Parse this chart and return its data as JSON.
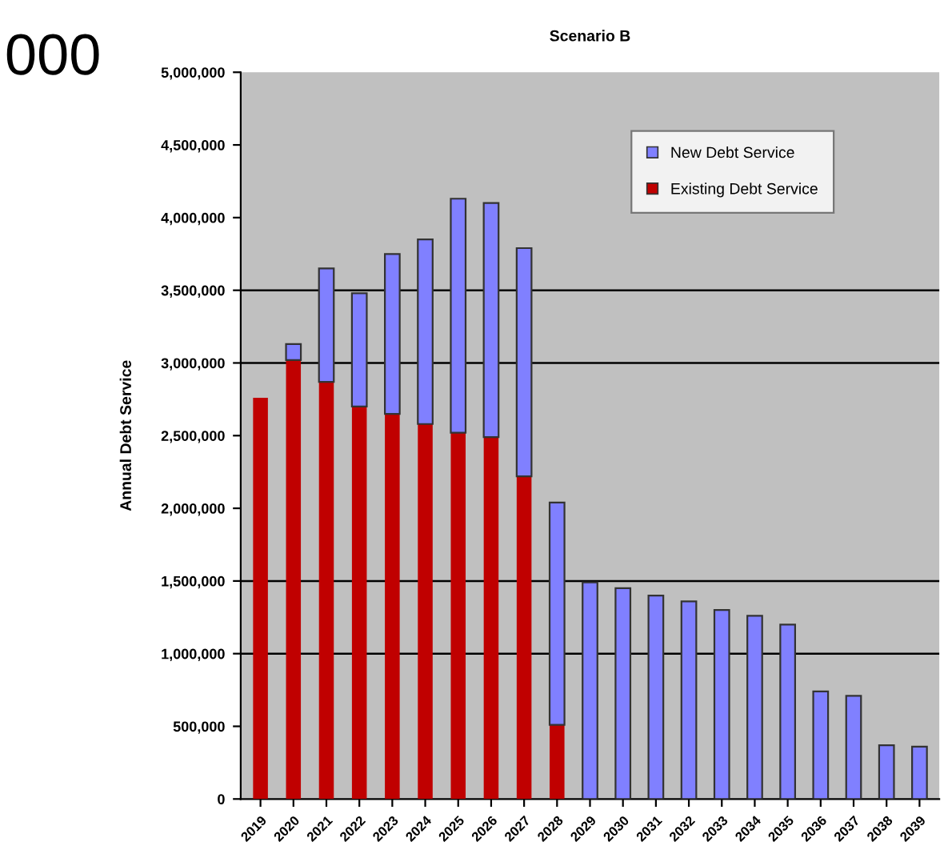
{
  "chart_data": {
    "type": "bar",
    "title": "Scenario B",
    "ylabel": "Annual Debt Service",
    "annotations": [
      "000"
    ],
    "categories": [
      "2019",
      "2020",
      "2021",
      "2022",
      "2023",
      "2024",
      "2025",
      "2026",
      "2027",
      "2028",
      "2029",
      "2030",
      "2031",
      "2032",
      "2033",
      "2034",
      "2035",
      "2036",
      "2037",
      "2038",
      "2039"
    ],
    "stacked": true,
    "series": [
      {
        "name": "Existing Debt Service",
        "color": "#c00000",
        "values": [
          2760000,
          3020000,
          2870000,
          2700000,
          2650000,
          2580000,
          2520000,
          2490000,
          2220000,
          510000,
          0,
          0,
          0,
          0,
          0,
          0,
          0,
          0,
          0,
          0,
          0
        ]
      },
      {
        "name": "New Debt Service",
        "color": "#8080ff",
        "values": [
          0,
          110000,
          780000,
          780000,
          1100000,
          1270000,
          1610000,
          1610000,
          1570000,
          1530000,
          1490000,
          1450000,
          1400000,
          1360000,
          1300000,
          1260000,
          1200000,
          740000,
          710000,
          370000,
          360000
        ]
      }
    ],
    "ylim": [
      0,
      5000000
    ],
    "yticks": [
      {
        "value": 0,
        "label": "0"
      },
      {
        "value": 500000,
        "label": "500,000"
      },
      {
        "value": 1000000,
        "label": "1,000,000"
      },
      {
        "value": 1500000,
        "label": "1,500,000"
      },
      {
        "value": 2000000,
        "label": "2,000,000"
      },
      {
        "value": 2500000,
        "label": "2,500,000"
      },
      {
        "value": 3000000,
        "label": "3,000,000"
      },
      {
        "value": 3500000,
        "label": "3,500,000"
      },
      {
        "value": 4000000,
        "label": "4,000,000"
      },
      {
        "value": 4500000,
        "label": "4,500,000"
      },
      {
        "value": 5000000,
        "label": "5,000,000"
      }
    ],
    "ref_lines": [
      {
        "axis": "y",
        "value": 1000000,
        "color": "#000000"
      },
      {
        "axis": "y",
        "value": 1500000,
        "color": "#000000"
      },
      {
        "axis": "y",
        "value": 3000000,
        "color": "#000000"
      },
      {
        "axis": "y",
        "value": 3500000,
        "color": "#000000"
      }
    ],
    "grid": false,
    "legend": "top right"
  }
}
